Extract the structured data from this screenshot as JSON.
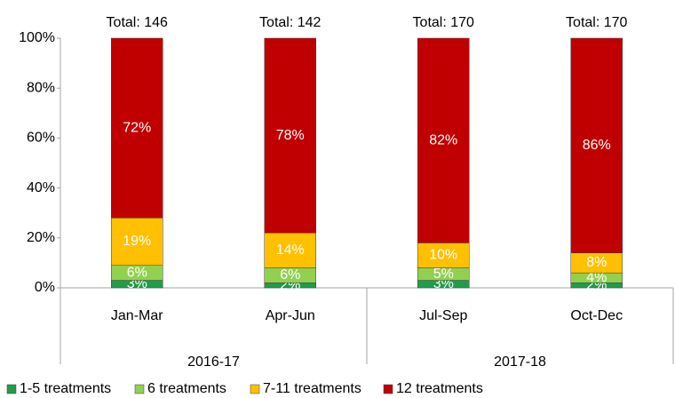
{
  "chart_data": {
    "type": "stacked_bar_percent",
    "categories": [
      "Jan-Mar",
      "Apr-Jun",
      "Jul-Sep",
      "Oct-Dec"
    ],
    "group_labels": [
      "2016-17",
      "2017-18"
    ],
    "annotations": [
      "Total: 146",
      "Total: 142",
      "Total: 170",
      "Total: 170"
    ],
    "series": [
      {
        "name": "1-5 treatments",
        "color": "#1e9e4a",
        "values": [
          3,
          2,
          3,
          2
        ],
        "value_labels": [
          "3%",
          "2%",
          "3%",
          "2%"
        ]
      },
      {
        "name": "6 treatments",
        "color": "#92d050",
        "values": [
          6,
          6,
          5,
          4
        ],
        "value_labels": [
          "6%",
          "6%",
          "5%",
          "4%"
        ]
      },
      {
        "name": "7-11 treatments",
        "color": "#ffc000",
        "values": [
          19,
          14,
          10,
          8
        ],
        "value_labels": [
          "19%",
          "14%",
          "10%",
          "8%"
        ]
      },
      {
        "name": "12 treatments",
        "color": "#c00000",
        "values": [
          72,
          78,
          82,
          86
        ],
        "value_labels": [
          "72%",
          "78%",
          "82%",
          "86%"
        ]
      }
    ],
    "ylim": [
      0,
      100
    ],
    "yticks": [
      {
        "value": 0,
        "label": "0%"
      },
      {
        "value": 20,
        "label": "20%"
      },
      {
        "value": 40,
        "label": "40%"
      },
      {
        "value": 60,
        "label": "60%"
      },
      {
        "value": 80,
        "label": "80%"
      },
      {
        "value": 100,
        "label": "100%"
      }
    ],
    "legend": "bottom"
  }
}
